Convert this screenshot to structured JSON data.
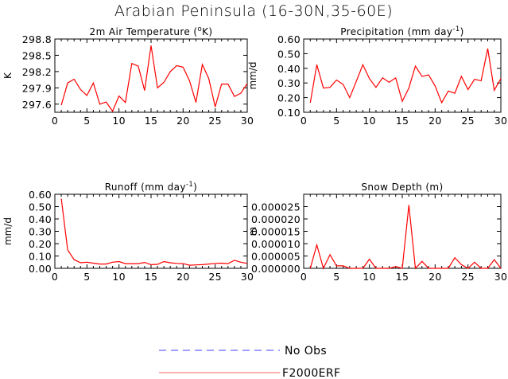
{
  "title": "Arabian Peninsula (16-30N,35-60E)",
  "colors": {
    "series": "#ff0000",
    "axes": "#000000",
    "legend_obs": "#6666ff",
    "legend_model": "#ff8080"
  },
  "legend": [
    {
      "label": "No Obs",
      "style": "dashed",
      "color": "#6666ff"
    },
    {
      "label": "F2000ERF",
      "style": "solid",
      "color": "#ff8080"
    }
  ],
  "chart_data": [
    {
      "type": "line",
      "title_main": "2m Air Temperature (",
      "title_sup": "o",
      "title_end": "K)",
      "ylabel": "K",
      "xlim": [
        0,
        30
      ],
      "ylim": [
        297.45,
        298.8
      ],
      "xticks": [
        "0",
        "5",
        "10",
        "15",
        "20",
        "25",
        "30"
      ],
      "yticks": [
        "297.6",
        "297.9",
        "298.2",
        "298.5",
        "298.8"
      ],
      "series": [
        {
          "name": "F2000ERF",
          "x": [
            1,
            2,
            3,
            4,
            5,
            6,
            7,
            8,
            9,
            10,
            11,
            12,
            13,
            14,
            15,
            16,
            17,
            18,
            19,
            20,
            21,
            22,
            23,
            24,
            25,
            26,
            27,
            28,
            29,
            30
          ],
          "values": [
            297.58,
            297.99,
            298.06,
            297.87,
            297.76,
            297.99,
            297.6,
            297.64,
            297.47,
            297.75,
            297.63,
            298.35,
            298.3,
            297.85,
            298.68,
            297.9,
            298.0,
            298.2,
            298.31,
            298.28,
            298.03,
            297.63,
            298.33,
            298.07,
            297.55,
            297.97,
            297.97,
            297.74,
            297.8,
            297.98
          ]
        }
      ]
    },
    {
      "type": "line",
      "title_main": "Precipitation (mm day",
      "title_sup": "-1",
      "title_end": ")",
      "ylabel": "mm/d",
      "xlim": [
        0,
        30
      ],
      "ylim": [
        0.1,
        0.6
      ],
      "xticks": [
        "0",
        "5",
        "10",
        "15",
        "20",
        "25",
        "30"
      ],
      "yticks": [
        "0.10",
        "0.20",
        "0.30",
        "0.40",
        "0.50",
        "0.60"
      ],
      "series": [
        {
          "name": "F2000ERF",
          "x": [
            1,
            2,
            3,
            4,
            5,
            6,
            7,
            8,
            9,
            10,
            11,
            12,
            13,
            14,
            15,
            16,
            17,
            18,
            19,
            20,
            21,
            22,
            23,
            24,
            25,
            26,
            27,
            28,
            29,
            30
          ],
          "values": [
            0.165,
            0.425,
            0.265,
            0.27,
            0.32,
            0.29,
            0.2,
            0.31,
            0.425,
            0.33,
            0.27,
            0.335,
            0.305,
            0.335,
            0.175,
            0.265,
            0.415,
            0.345,
            0.355,
            0.28,
            0.165,
            0.245,
            0.23,
            0.345,
            0.255,
            0.325,
            0.315,
            0.535,
            0.25,
            0.33
          ]
        }
      ]
    },
    {
      "type": "line",
      "title_main": "Runoff (mm day",
      "title_sup": "-1",
      "title_end": ")",
      "ylabel": "mm/d",
      "xlim": [
        0,
        30
      ],
      "ylim": [
        0.0,
        0.6
      ],
      "xticks": [
        "0",
        "5",
        "10",
        "15",
        "20",
        "25",
        "30"
      ],
      "yticks": [
        "0.00",
        "0.10",
        "0.20",
        "0.30",
        "0.40",
        "0.50",
        "0.60"
      ],
      "series": [
        {
          "name": "F2000ERF",
          "x": [
            1,
            2,
            3,
            4,
            5,
            6,
            7,
            8,
            9,
            10,
            11,
            12,
            13,
            14,
            15,
            16,
            17,
            18,
            19,
            20,
            21,
            22,
            23,
            24,
            25,
            26,
            27,
            28,
            29,
            30
          ],
          "values": [
            0.565,
            0.15,
            0.07,
            0.045,
            0.05,
            0.042,
            0.035,
            0.035,
            0.05,
            0.055,
            0.038,
            0.038,
            0.038,
            0.048,
            0.03,
            0.032,
            0.055,
            0.045,
            0.04,
            0.038,
            0.025,
            0.028,
            0.03,
            0.035,
            0.04,
            0.042,
            0.038,
            0.065,
            0.05,
            0.04
          ]
        }
      ]
    },
    {
      "type": "line",
      "title_main": "Snow Depth (m)",
      "title_sup": "",
      "title_end": "",
      "ylabel": "m",
      "xlim": [
        0,
        30
      ],
      "ylim": [
        0.0,
        3e-05
      ],
      "xticks": [
        "0",
        "5",
        "10",
        "15",
        "20",
        "25",
        "30"
      ],
      "yticks": [
        "0.000000",
        "0.000005",
        "0.000010",
        "0.000015",
        "0.000020",
        "0.000025"
      ],
      "series": [
        {
          "name": "F2000ERF",
          "x": [
            1,
            2,
            3,
            4,
            5,
            6,
            7,
            8,
            9,
            10,
            11,
            12,
            13,
            14,
            15,
            16,
            17,
            18,
            19,
            20,
            21,
            22,
            23,
            24,
            25,
            26,
            27,
            28,
            29,
            30
          ],
          "values": [
            0.0,
            9.5e-06,
            0.0,
            5.5e-06,
            1e-06,
            1e-06,
            0.0,
            0.0,
            0.0,
            3.7e-06,
            0.0,
            0.0,
            0.0,
            7e-07,
            0.0,
            2.56e-05,
            0.0,
            2.8e-06,
            0.0,
            0.0,
            0.0,
            0.0,
            4.3e-06,
            1.5e-06,
            0.0,
            2.5e-06,
            0.0,
            0.0,
            3.5e-06,
            0.0
          ]
        }
      ]
    }
  ]
}
